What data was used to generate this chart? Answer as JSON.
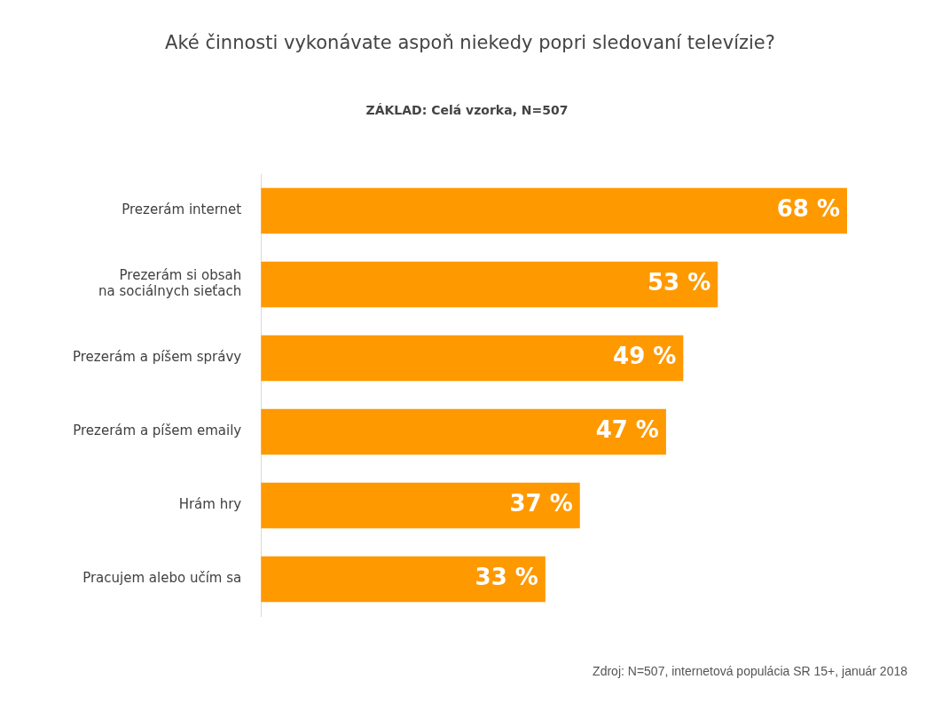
{
  "chart_data": {
    "type": "bar",
    "orientation": "horizontal",
    "title": "Aké činnosti vykonávate aspoň niekedy popri sledovaní televízie?",
    "subtitle": "ZÁKLAD: Celá vzorka, N=507",
    "categories": [
      "Prezerám internet",
      "Prezerám si obsah\nna sociálnych sieťach",
      "Prezerám a píšem správy",
      "Prezerám a píšem emaily",
      "Hrám hry",
      "Pracujem alebo učím sa"
    ],
    "values": [
      68,
      53,
      49,
      47,
      37,
      33
    ],
    "value_labels": [
      "68 %",
      "53 %",
      "49 %",
      "47 %",
      "37 %",
      "33 %"
    ],
    "color": "#ff9900",
    "legend": false,
    "tick_labels": "y",
    "annotations": [
      "Zdroj: N=507, internetová populácia SR 15+, január 2018"
    ]
  }
}
